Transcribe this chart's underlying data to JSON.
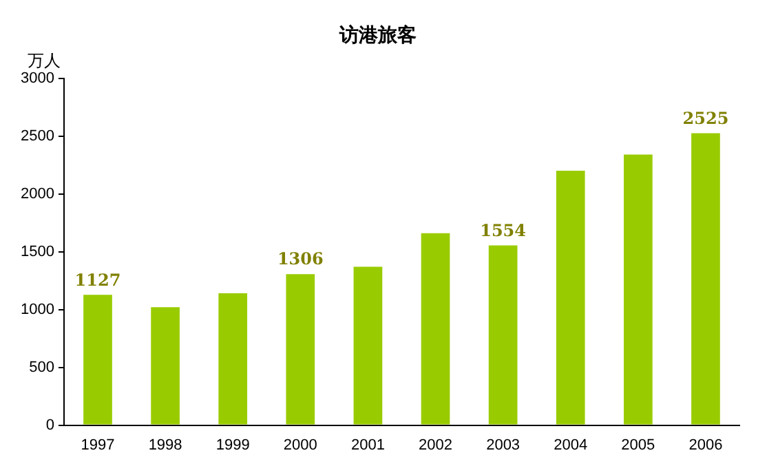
{
  "chart_data": {
    "type": "bar",
    "title": "访港旅客",
    "ylabel": "万人",
    "categories": [
      "1997",
      "1998",
      "1999",
      "2000",
      "2001",
      "2002",
      "2003",
      "2004",
      "2005",
      "2006"
    ],
    "values": [
      1127,
      1020,
      1140,
      1306,
      1370,
      1660,
      1554,
      2200,
      2340,
      2525
    ],
    "value_labels": [
      "1127",
      null,
      null,
      "1306",
      null,
      null,
      "1554",
      null,
      null,
      "2525"
    ],
    "color": "#99cc00",
    "ylim": [
      0,
      3000
    ],
    "yticks": [
      0,
      500,
      1000,
      1500,
      2000,
      2500,
      3000
    ],
    "grid": false,
    "legend": false
  }
}
